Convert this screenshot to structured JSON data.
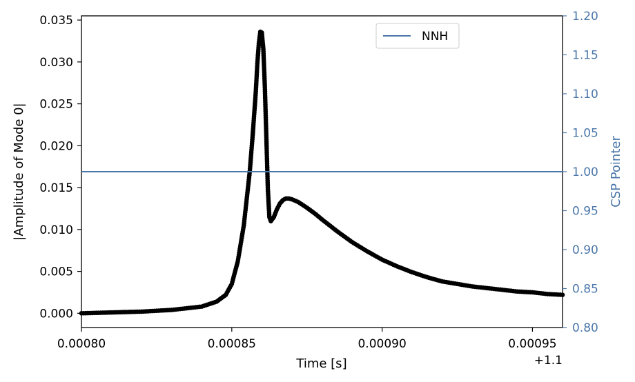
{
  "chart_data": {
    "type": "scatter",
    "xlabel": "Time [s]",
    "ylabel_left": "|Amplitude of Mode 0|",
    "ylabel_right": "CSP Pointer",
    "x_offset_label": "+1.1",
    "xlim": [
      0.0008,
      0.00096
    ],
    "ylim_left": [
      -0.0017,
      0.0355
    ],
    "ylim_right": [
      0.8,
      1.2
    ],
    "x_ticks": [
      {
        "value": 0.0008,
        "label": "0.00080"
      },
      {
        "value": 0.00085,
        "label": "0.00085"
      },
      {
        "value": 0.0009,
        "label": "0.00090"
      },
      {
        "value": 0.00095,
        "label": "0.00095"
      }
    ],
    "y_left_ticks": [
      {
        "value": 0.0,
        "label": "0.000"
      },
      {
        "value": 0.005,
        "label": "0.005"
      },
      {
        "value": 0.01,
        "label": "0.010"
      },
      {
        "value": 0.015,
        "label": "0.015"
      },
      {
        "value": 0.02,
        "label": "0.020"
      },
      {
        "value": 0.025,
        "label": "0.025"
      },
      {
        "value": 0.03,
        "label": "0.030"
      },
      {
        "value": 0.035,
        "label": "0.035"
      }
    ],
    "y_right_ticks": [
      {
        "value": 0.8,
        "label": "0.80"
      },
      {
        "value": 0.85,
        "label": "0.85"
      },
      {
        "value": 0.9,
        "label": "0.90"
      },
      {
        "value": 0.95,
        "label": "0.95"
      },
      {
        "value": 1.0,
        "label": "1.00"
      },
      {
        "value": 1.05,
        "label": "1.05"
      },
      {
        "value": 1.1,
        "label": "1.10"
      },
      {
        "value": 1.15,
        "label": "1.15"
      },
      {
        "value": 1.2,
        "label": "1.20"
      }
    ],
    "series": [
      {
        "axis": "left",
        "style": "markers",
        "color": "#000000",
        "x": [
          0.0008,
          0.00081,
          0.00082,
          0.00083,
          0.00084,
          0.000845,
          0.000848,
          0.00085,
          0.000852,
          0.000854,
          0.000856,
          0.000857,
          0.000858,
          0.0008585,
          0.000859,
          0.0008595,
          0.00086,
          0.0008605,
          0.000861,
          0.0008615,
          0.000862,
          0.0008625,
          0.000863,
          0.000864,
          0.000865,
          0.000866,
          0.000867,
          0.000868,
          0.000869,
          0.00087,
          0.000872,
          0.000875,
          0.000878,
          0.00088,
          0.000885,
          0.00089,
          0.000895,
          0.0009,
          0.000905,
          0.00091,
          0.000915,
          0.00092,
          0.000925,
          0.00093,
          0.000935,
          0.00094,
          0.000945,
          0.00095,
          0.000955,
          0.00096
        ],
        "y": [
          0.0,
          0.0001,
          0.0002,
          0.0004,
          0.0008,
          0.0014,
          0.0022,
          0.0035,
          0.0062,
          0.0105,
          0.017,
          0.0215,
          0.0265,
          0.0298,
          0.0322,
          0.0336,
          0.0335,
          0.0315,
          0.027,
          0.021,
          0.0148,
          0.0115,
          0.011,
          0.0115,
          0.0124,
          0.0131,
          0.0135,
          0.0137,
          0.0137,
          0.0136,
          0.0133,
          0.0126,
          0.0118,
          0.0112,
          0.0098,
          0.0085,
          0.0074,
          0.0064,
          0.0056,
          0.0049,
          0.0043,
          0.0038,
          0.0035,
          0.0032,
          0.003,
          0.0028,
          0.0026,
          0.0025,
          0.0023,
          0.0022
        ]
      },
      {
        "name": "NNH",
        "axis": "right",
        "style": "line",
        "color": "#4a76a8",
        "x": [
          0.0008,
          0.00096
        ],
        "y": [
          1.0,
          1.0
        ]
      }
    ],
    "legend": {
      "placement": "top-center",
      "entries": [
        "NNH"
      ]
    },
    "grid": false,
    "right_axis_color": "#4a76a8"
  }
}
